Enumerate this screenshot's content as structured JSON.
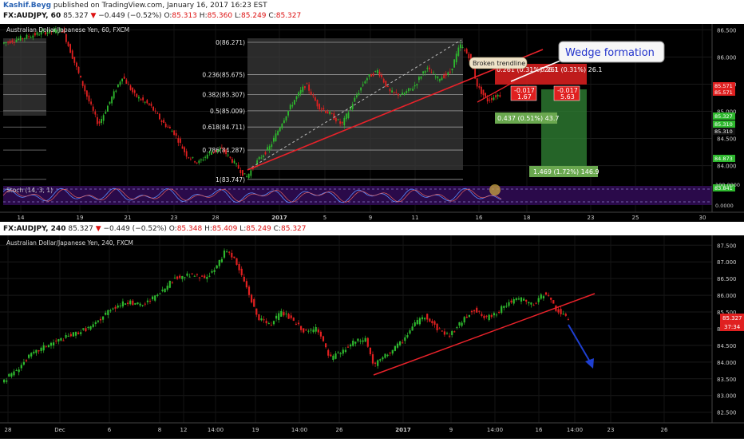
{
  "header": {
    "author": "Kashif.Beyg",
    "published": "published on TradingView.com, January 16, 2017 16:23 EST",
    "symbol": "FX:AUDJPY, 60",
    "last": "85.327",
    "change": "−0.449 (−0.52%)",
    "o_label": "O:",
    "o_value": "85.313",
    "h_label": "H:",
    "h_value": "85.360",
    "l_label": "L:",
    "l_value": "85.249",
    "c_label": "C:",
    "c_value": "85.327"
  },
  "header2": {
    "symbol": "FX:AUDJPY, 240",
    "last": "85.327",
    "change": "−0.449 (−0.52%)",
    "o_label": "O:",
    "o_value": "85.348",
    "h_label": "H:",
    "h_value": "85.409",
    "l_label": "L:",
    "l_value": "85.249",
    "c_label": "C:",
    "c_value": "85.327"
  },
  "colors": {
    "background": "#000000",
    "up_candle": "#2eb82e",
    "down_candle": "#e02020",
    "trendline": "#e8222a",
    "fib_band": "#3a3a3a",
    "stoch_bg": "#2a0a4a",
    "forecast_arrow": "#1e3fd0"
  },
  "chart_data": [
    {
      "type": "candlestick",
      "title": "Australian Dollar/Japanese Yen, 60, FXCM",
      "x_ticks": [
        "14",
        "19",
        "21",
        "23",
        "28",
        "2017",
        "5",
        "9",
        "11",
        "16",
        "18",
        "23",
        "25",
        "30"
      ],
      "y_ticks": [
        86.5,
        86.0,
        85.5,
        85.0,
        84.5,
        84.0
      ],
      "ylim": [
        83.7,
        86.55
      ],
      "price_labels": [
        {
          "text": "85.571",
          "color": "#e02020"
        },
        {
          "text": "85.571",
          "color": "#e02020"
        },
        {
          "text": "85.327",
          "color": "#2eb82e"
        },
        {
          "text": "85.310",
          "color": "#2eb82e"
        },
        {
          "text": "85.310",
          "color": "#111111"
        },
        {
          "text": "84.873",
          "color": "#2eb82e"
        },
        {
          "text": "83.841",
          "color": "#2eb82e"
        }
      ],
      "fibonacci": [
        {
          "level": "0",
          "price": 86.271
        },
        {
          "level": "0.236",
          "price": 85.675
        },
        {
          "level": "0.382",
          "price": 85.307
        },
        {
          "level": "0.5",
          "price": 85.009
        },
        {
          "level": "0.618",
          "price": 84.711
        },
        {
          "level": "0.786",
          "price": 84.287
        },
        {
          "level": "1",
          "price": 83.747
        }
      ],
      "annotations": {
        "broken_trendline": "Broken trendline",
        "wedge": "Wedge formation",
        "pos1": "0.261 (0.31%) 26.1",
        "pos2": "0.261 (0.31%) 26.1",
        "neg1_a": "-0.017",
        "neg1_b": "1.67",
        "neg2_a": "-0.017",
        "neg2_b": "5.63",
        "tp1": "0.437 (0.51%) 43.7",
        "tp2": "1.469 (1.72%) 146.9"
      },
      "stochastic": {
        "label": "Stoch (14, 3, 1)",
        "y_ticks": [
          "100.0000",
          "0.0000"
        ]
      }
    },
    {
      "type": "candlestick",
      "title": "Australian Dollar/Japanese Yen, 240, FXCM",
      "x_ticks": [
        "28",
        "Dec",
        "6",
        "8",
        "12",
        "14:00",
        "19",
        "14:00",
        "26",
        "2017",
        "9",
        "14:00",
        "16",
        "14:00",
        "23",
        "26"
      ],
      "y_ticks": [
        87.5,
        87.0,
        86.5,
        86.0,
        85.5,
        85.0,
        84.5,
        84.0,
        83.5,
        83.0,
        82.5
      ],
      "ylim": [
        82.3,
        87.65
      ],
      "price_label": "85.327",
      "countdown": "37:34"
    }
  ]
}
